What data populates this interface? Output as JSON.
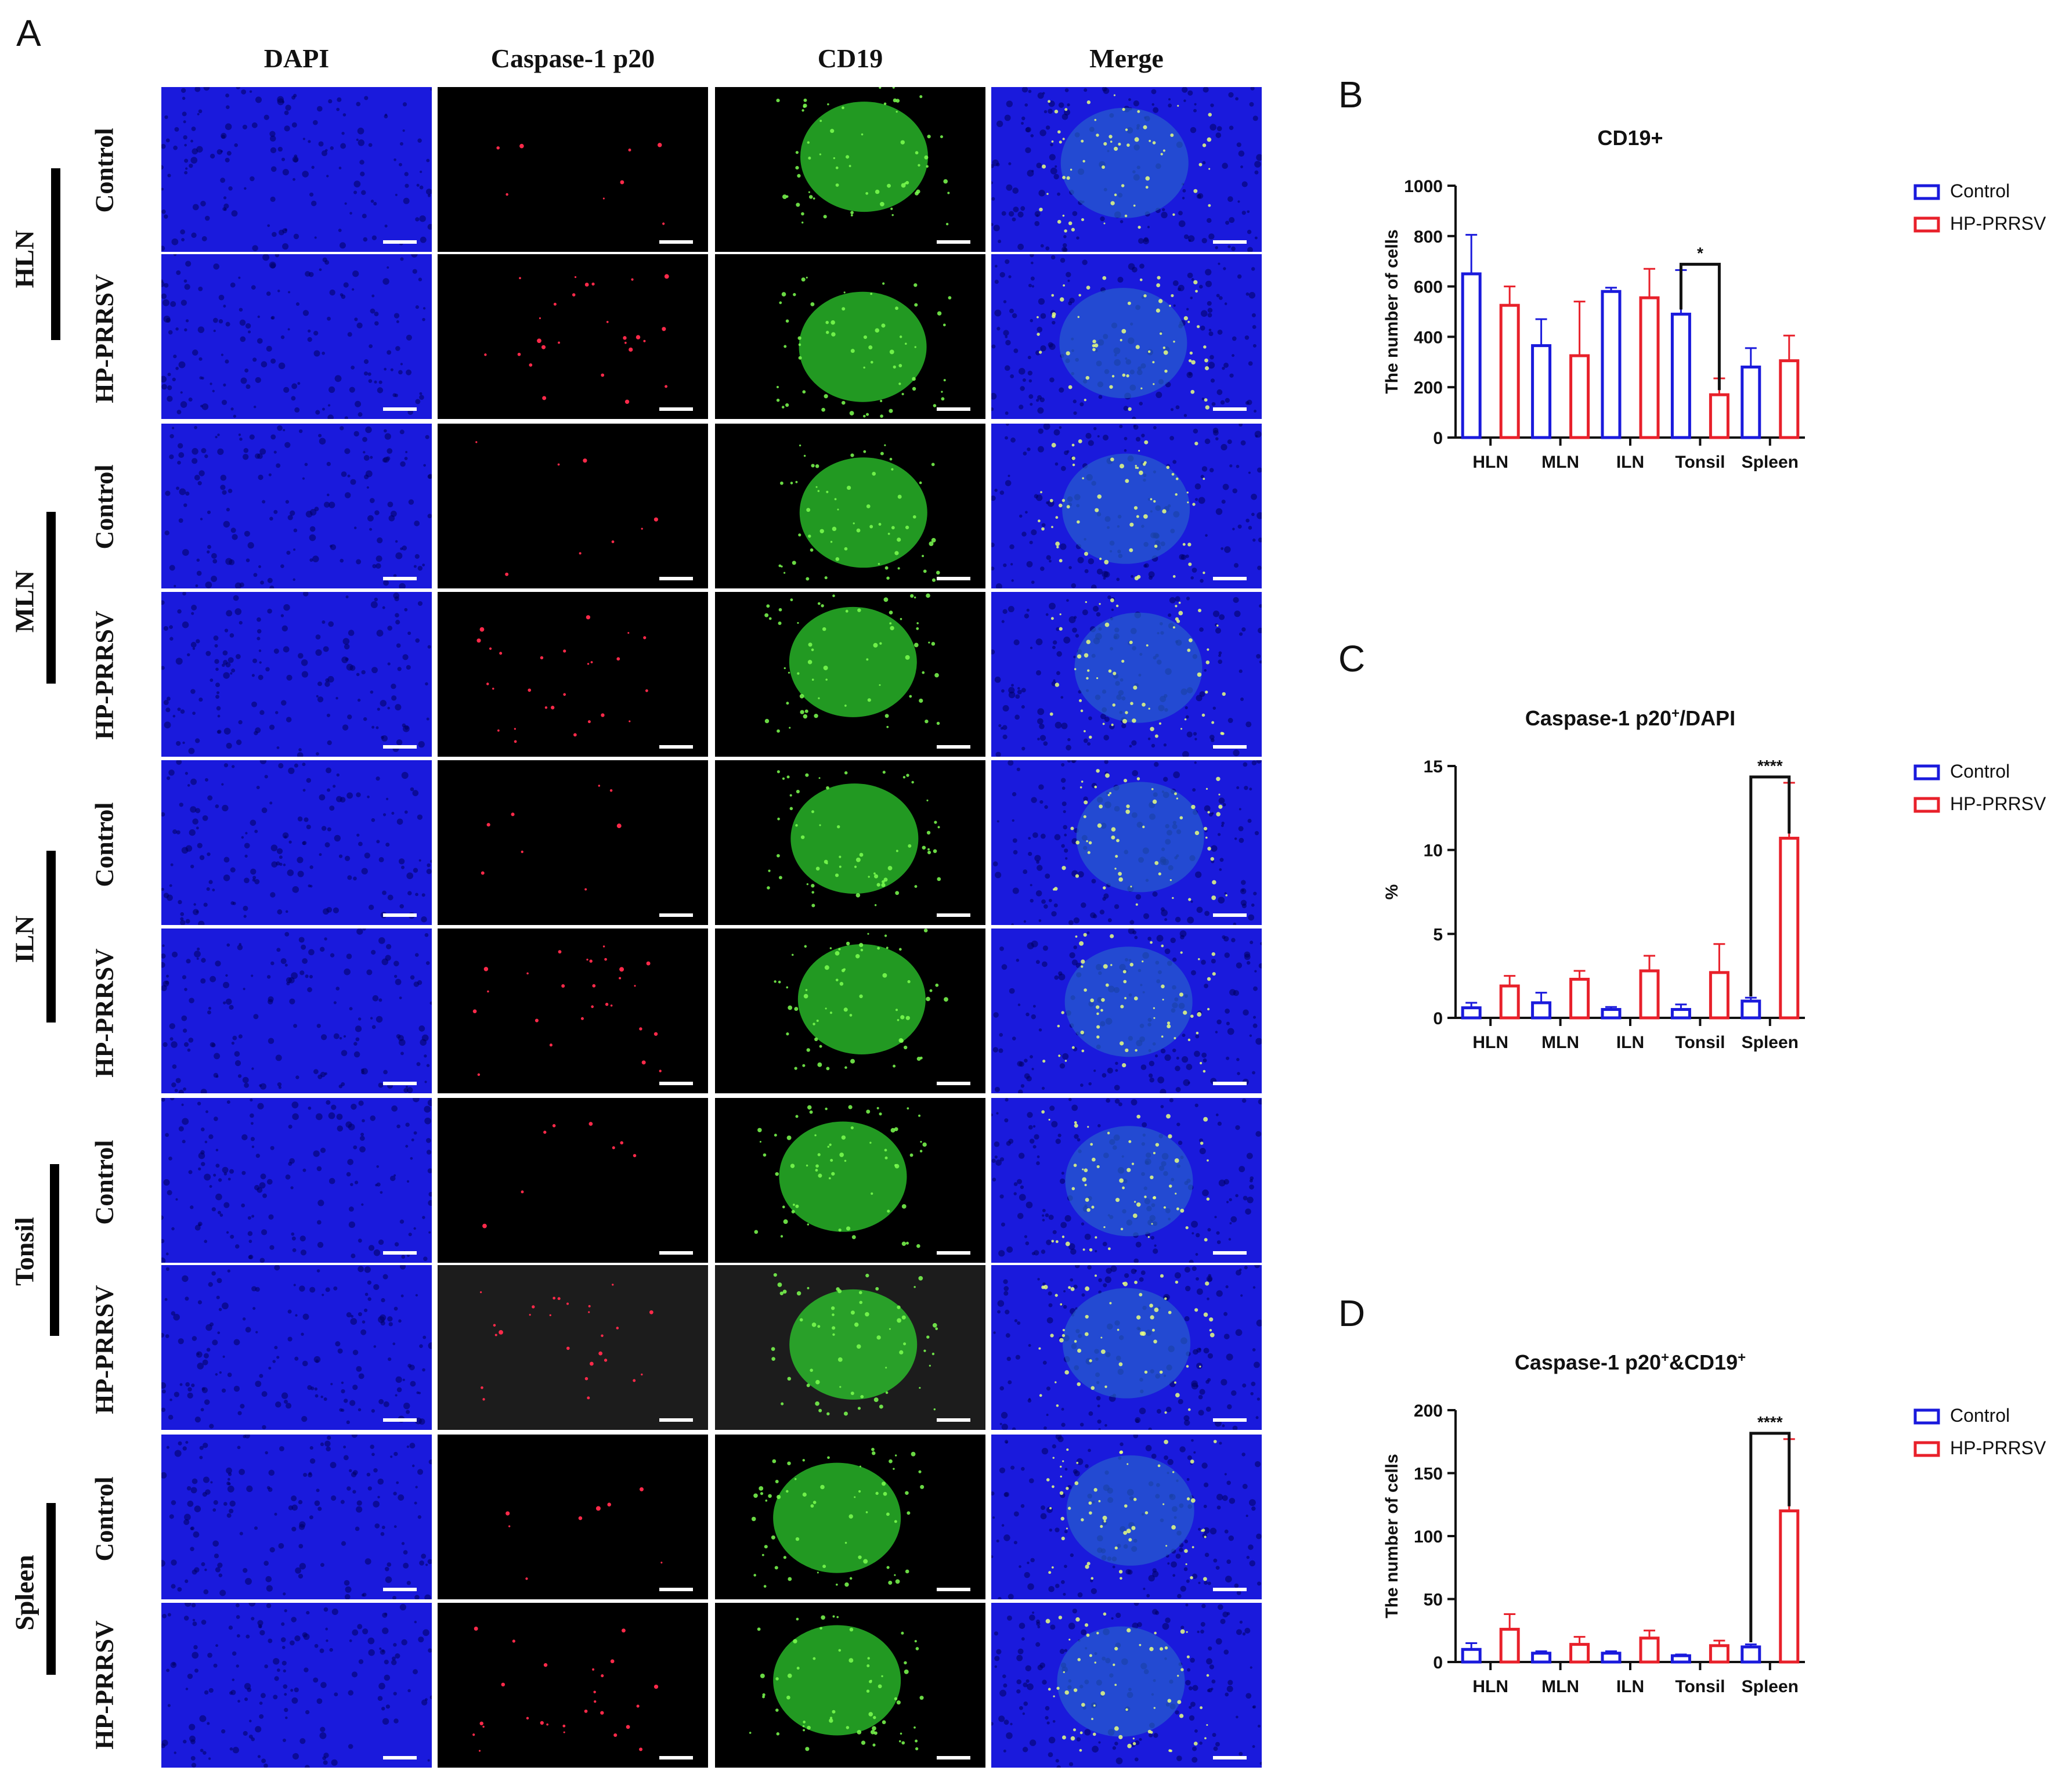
{
  "panel_letters": {
    "a": "A",
    "b": "B",
    "c": "C",
    "d": "D"
  },
  "micrograph": {
    "columns": [
      "DAPI",
      "Caspase-1 p20",
      "CD19",
      "Merge"
    ],
    "tissues": [
      {
        "name": "HLN",
        "groups": [
          "Control",
          "HP-PRRSV"
        ]
      },
      {
        "name": "MLN",
        "groups": [
          "Control",
          "HP-PRRSV"
        ]
      },
      {
        "name": "ILN",
        "groups": [
          "Control",
          "HP-PRRSV"
        ]
      },
      {
        "name": "Tonsil",
        "groups": [
          "Control",
          "HP-PRRSV"
        ]
      },
      {
        "name": "Spleen",
        "groups": [
          "Control",
          "HP-PRRSV"
        ]
      }
    ],
    "colors": {
      "dapi": "#1a1adc",
      "caspase": "#ff2a4a",
      "cd19": "#2ecc2e",
      "merge": "#2a6acc"
    }
  },
  "chart_data": [
    {
      "type": "bar",
      "panel": "B",
      "title": "CD19+",
      "ylabel": "The number of cells",
      "xlabel": "",
      "categories": [
        "HLN",
        "MLN",
        "ILN",
        "Tonsil",
        "Spleen"
      ],
      "ylim": [
        0,
        1000
      ],
      "yticks": [
        0,
        200,
        400,
        600,
        800,
        1000
      ],
      "series": [
        {
          "name": "Control",
          "color": "#1a1adc",
          "values": [
            650,
            365,
            580,
            490,
            280
          ],
          "errors": [
            155,
            105,
            15,
            175,
            75
          ]
        },
        {
          "name": "HP-PRRSV",
          "color": "#e8202a",
          "values": [
            525,
            325,
            555,
            170,
            305
          ],
          "errors": [
            75,
            215,
            115,
            65,
            100
          ]
        }
      ],
      "significance": [
        {
          "category": "Tonsil",
          "label": "*"
        }
      ],
      "legend_position": "right"
    },
    {
      "type": "bar",
      "panel": "C",
      "title_main": "Caspase-1 p20",
      "title_sup": "+",
      "title_tail": "/DAPI",
      "ylabel": "%",
      "xlabel": "",
      "categories": [
        "HLN",
        "MLN",
        "ILN",
        "Tonsil",
        "Spleen"
      ],
      "ylim": [
        0,
        15
      ],
      "yticks": [
        0,
        5,
        10,
        15
      ],
      "series": [
        {
          "name": "Control",
          "color": "#1a1adc",
          "values": [
            0.6,
            0.9,
            0.5,
            0.5,
            1.0
          ],
          "errors": [
            0.3,
            0.6,
            0.15,
            0.3,
            0.2
          ]
        },
        {
          "name": "HP-PRRSV",
          "color": "#e8202a",
          "values": [
            1.9,
            2.3,
            2.8,
            2.7,
            10.7
          ],
          "errors": [
            0.6,
            0.5,
            0.9,
            1.7,
            3.3
          ]
        }
      ],
      "significance": [
        {
          "category": "Spleen",
          "label": "****"
        }
      ],
      "legend_position": "right"
    },
    {
      "type": "bar",
      "panel": "D",
      "title_main": "Caspase-1 p20",
      "title_sup": "+",
      "title_mid": "&CD19",
      "title_sup2": "+",
      "ylabel": "The number of cells",
      "xlabel": "",
      "categories": [
        "HLN",
        "MLN",
        "ILN",
        "Tonsil",
        "Spleen"
      ],
      "ylim": [
        0,
        200
      ],
      "yticks": [
        0,
        50,
        100,
        150,
        200
      ],
      "series": [
        {
          "name": "Control",
          "color": "#1a1adc",
          "values": [
            10,
            7,
            7,
            5,
            12
          ],
          "errors": [
            5,
            1.5,
            1.5,
            1,
            2
          ]
        },
        {
          "name": "HP-PRRSV",
          "color": "#e8202a",
          "values": [
            26,
            14,
            19,
            13,
            120
          ],
          "errors": [
            12,
            6,
            6,
            4,
            57
          ]
        }
      ],
      "significance": [
        {
          "category": "Spleen",
          "label": "****"
        }
      ],
      "legend_position": "right"
    }
  ]
}
